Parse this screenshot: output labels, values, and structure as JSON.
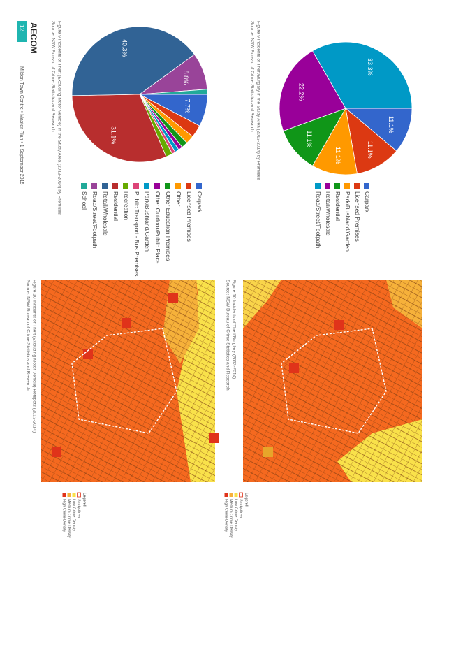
{
  "chart_data": [
    {
      "type": "pie",
      "categories": [
        "Carpark",
        "Licensed Premises",
        "Park/Bushland/Garden",
        "Residential",
        "Retail/Wholesale",
        "Road/Street/Footpath"
      ],
      "values": [
        11.1,
        11.1,
        11.1,
        11.1,
        22.2,
        33.3
      ],
      "value_labels": [
        "11.1%",
        "11.1%",
        "11.1%",
        "11.1%",
        "22.2%",
        "33.3%"
      ],
      "colors": [
        "#3366cc",
        "#dc3912",
        "#ff9900",
        "#109618",
        "#990099",
        "#0099c6"
      ]
    },
    {
      "type": "pie",
      "categories": [
        "Carpark",
        "Licensed Premises",
        "Other",
        "Other Education Premises",
        "Other Outdoor/Public Place",
        "Park/Bushland/Garden",
        "Public Transport - Bus Premises",
        "Recreation",
        "Residential",
        "Retail/Wholesale",
        "Road/Street/Footpath",
        "School"
      ],
      "values": [
        7.7,
        3.0,
        2.0,
        1.5,
        1.0,
        1.0,
        0.8,
        1.6,
        31.1,
        40.3,
        8.8,
        1.2
      ],
      "value_labels": [
        "7.7%",
        null,
        null,
        null,
        null,
        null,
        null,
        null,
        "31.1%",
        "40.3%",
        "8.8%",
        null
      ],
      "colors": [
        "#3366cc",
        "#dc3912",
        "#ff9900",
        "#109618",
        "#990099",
        "#0099c6",
        "#dd4477",
        "#66aa00",
        "#b82e2e",
        "#316395",
        "#994499",
        "#22aa99"
      ]
    }
  ],
  "captions": [
    {
      "figure": "Figure 9   Incidents of Theft/Burglary in the Study Area (2013-2014) by Premises",
      "source": "Source:   NSW Bureau of Crime Statistics and Research"
    },
    {
      "figure": "Figure 9   Incidents of Theft (Excluding Motor Vehicle) in the Study Area (2013-2014) by Premises",
      "source": "Source:   NSW Bureau of Crime Statistics and Research"
    },
    {
      "figure": "Figure 10   Incidents of Theft/Burglary (2013-2014)",
      "source": "Source:   NSW Bureau of Crime Statistics and Research"
    },
    {
      "figure": "Figure 10   Incidents of Theft (Excluding Motor Vehicle) Hotspots (2013-2014)",
      "source": "Source:   NSW Bureau of Crime Statistics and Research"
    }
  ],
  "map_legends": [
    {
      "title": "Legend",
      "items": [
        "Study Area",
        "Low Crime Density",
        "Medium Crime Density",
        "High Crime Density"
      ]
    },
    {
      "title": "Legend",
      "items": [
        "Study Area",
        "Low Crime Density",
        "Medium Crime Density",
        "High Crime Density"
      ]
    }
  ],
  "footer": {
    "brand": "AECOM",
    "page": "12",
    "text": "Mildon Town Centre • Master Plan • 1 September 2015"
  }
}
